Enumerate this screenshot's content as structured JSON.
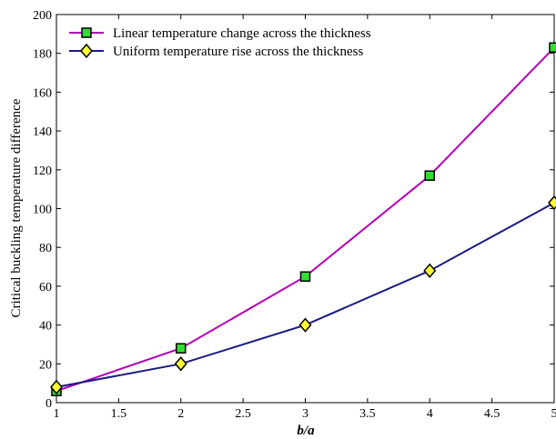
{
  "chart_data": {
    "type": "line",
    "title": "",
    "xlabel": "b/a",
    "ylabel": "Critical buckling temperature difference",
    "xlim": [
      1,
      5
    ],
    "ylim": [
      0,
      200
    ],
    "grid": false,
    "legend_position": "top-left",
    "x_ticks": [
      "1",
      "1.5",
      "2",
      "2.5",
      "3",
      "3.5",
      "4",
      "4.5",
      "5"
    ],
    "y_ticks": [
      "0",
      "20",
      "40",
      "60",
      "80",
      "100",
      "120",
      "140",
      "160",
      "180",
      "200"
    ],
    "series": [
      {
        "name": "Linear temperature change across the thickness",
        "marker": "square",
        "line_color": "#b400b4",
        "marker_color": "#33dd33",
        "x": [
          1,
          2,
          3,
          4,
          5
        ],
        "values": [
          6,
          28,
          65,
          117,
          183
        ]
      },
      {
        "name": "Uniform temperature rise across the thickness",
        "marker": "diamond",
        "line_color": "#1a1a80",
        "marker_color": "#ffff33",
        "x": [
          1,
          2,
          3,
          4,
          5
        ],
        "values": [
          8,
          20,
          40,
          68,
          103
        ]
      }
    ]
  }
}
